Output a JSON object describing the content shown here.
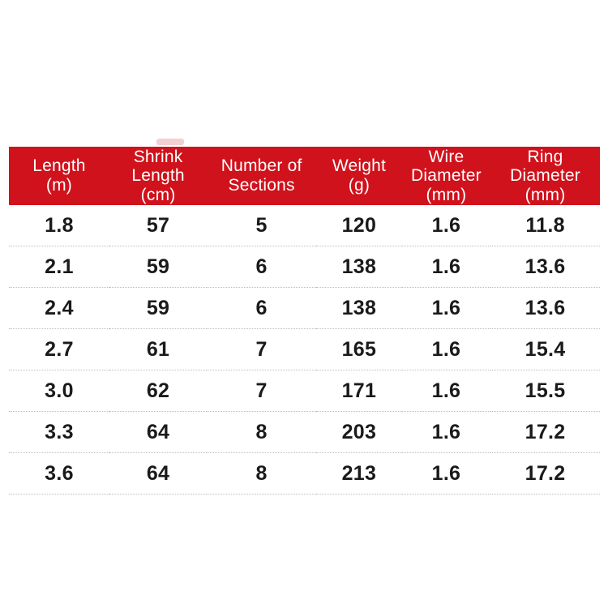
{
  "page": {
    "background_color": "#ffffff"
  },
  "table": {
    "header_bg_color": "#d0121c",
    "header_text_color": "#ffffff",
    "body_text_color": "#1a1a1a",
    "divider_color": "#bdbdbd",
    "columns": [
      {
        "lines": [
          "Length",
          "(m)"
        ]
      },
      {
        "lines": [
          "Shrink",
          "Length",
          "(cm)"
        ]
      },
      {
        "lines": [
          "Number of",
          "Sections"
        ]
      },
      {
        "lines": [
          "Weight",
          "(g)"
        ]
      },
      {
        "lines": [
          "Wire",
          "Diameter",
          "(mm)"
        ]
      },
      {
        "lines": [
          "Ring",
          "Diameter",
          "(mm)"
        ]
      }
    ]
  },
  "chart_data": {
    "type": "table",
    "title": "",
    "columns": [
      "Length (m)",
      "Shrink Length (cm)",
      "Number of Sections",
      "Weight (g)",
      "Wire Diameter (mm)",
      "Ring Diameter (mm)"
    ],
    "rows": [
      [
        "1.8",
        "57",
        "5",
        "120",
        "1.6",
        "11.8"
      ],
      [
        "2.1",
        "59",
        "6",
        "138",
        "1.6",
        "13.6"
      ],
      [
        "2.4",
        "59",
        "6",
        "138",
        "1.6",
        "13.6"
      ],
      [
        "2.7",
        "61",
        "7",
        "165",
        "1.6",
        "15.4"
      ],
      [
        "3.0",
        "62",
        "7",
        "171",
        "1.6",
        "15.5"
      ],
      [
        "3.3",
        "64",
        "8",
        "203",
        "1.6",
        "17.2"
      ],
      [
        "3.6",
        "64",
        "8",
        "213",
        "1.6",
        "17.2"
      ]
    ]
  }
}
